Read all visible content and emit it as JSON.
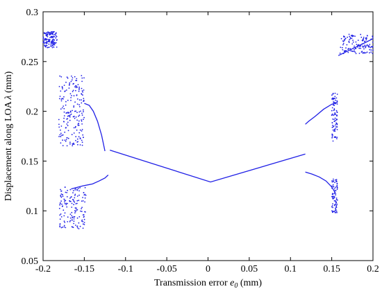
{
  "chart_data": {
    "type": "scatter",
    "title": "",
    "xlabel": "Transmission error e0 (mm)",
    "xlabel_parts": {
      "prefix": "Transmission error ",
      "symbol": "e",
      "subscript": "0",
      "suffix": " (mm)"
    },
    "ylabel": "Displacement along LOA λ (mm)",
    "ylabel_parts": {
      "prefix": "Displacement along LOA ",
      "symbol": "λ",
      "suffix": " (mm)"
    },
    "xlim": [
      -0.2,
      0.2
    ],
    "ylim": [
      0.05,
      0.3
    ],
    "xticks": [
      -0.2,
      -0.15,
      -0.1,
      -0.05,
      0,
      0.05,
      0.1,
      0.15,
      0.2
    ],
    "xtick_labels": [
      "-0.2",
      "-0.15",
      "-0.1",
      "-0.05",
      "0",
      "0.05",
      "0.1",
      "0.15",
      "0.2"
    ],
    "yticks": [
      0.05,
      0.1,
      0.15,
      0.2,
      0.25,
      0.3
    ],
    "ytick_labels": [
      "0.05",
      "0.1",
      "0.15",
      "0.2",
      "0.25",
      "0.3"
    ],
    "grid": false,
    "legend": "none",
    "series": [
      {
        "color": "#1f1fe6",
        "line_segments": [
          {
            "x": [
              -0.119,
              0.003,
              0.118
            ],
            "y": [
              0.161,
              0.129,
              0.157
            ]
          },
          {
            "x": [
              -0.166,
              -0.152,
              -0.14,
              -0.132,
              -0.125,
              -0.121
            ],
            "y": [
              0.122,
              0.125,
              0.127,
              0.13,
              0.133,
              0.136
            ]
          },
          {
            "x": [
              -0.15,
              -0.144,
              -0.139,
              -0.134,
              -0.129,
              -0.125
            ],
            "y": [
              0.208,
              0.206,
              0.2,
              0.19,
              0.176,
              0.16
            ]
          },
          {
            "x": [
              0.118,
              0.122,
              0.13,
              0.14,
              0.15,
              0.157
            ],
            "y": [
              0.187,
              0.19,
              0.195,
              0.202,
              0.207,
              0.209
            ]
          },
          {
            "x": [
              0.118,
              0.126,
              0.135,
              0.143,
              0.15,
              0.155
            ],
            "y": [
              0.139,
              0.137,
              0.134,
              0.13,
              0.124,
              0.117
            ]
          },
          {
            "x": [
              0.158,
              0.168,
              0.178,
              0.188,
              0.2
            ],
            "y": [
              0.256,
              0.26,
              0.264,
              0.268,
              0.273
            ]
          }
        ],
        "scatter_clusters": [
          {
            "x": [
              -0.2,
              -0.183
            ],
            "y": [
              0.264,
              0.28
            ],
            "count": 140
          },
          {
            "x": [
              -0.181,
              -0.15
            ],
            "y": [
              0.165,
              0.236
            ],
            "count": 200
          },
          {
            "x": [
              -0.18,
              -0.148
            ],
            "y": [
              0.082,
              0.125
            ],
            "count": 150
          },
          {
            "x": [
              0.15,
              0.157
            ],
            "y": [
              0.17,
              0.22
            ],
            "count": 90
          },
          {
            "x": [
              0.15,
              0.157
            ],
            "y": [
              0.098,
              0.132
            ],
            "count": 80
          },
          {
            "x": [
              0.16,
              0.2
            ],
            "y": [
              0.258,
              0.278
            ],
            "count": 130
          }
        ]
      }
    ]
  }
}
